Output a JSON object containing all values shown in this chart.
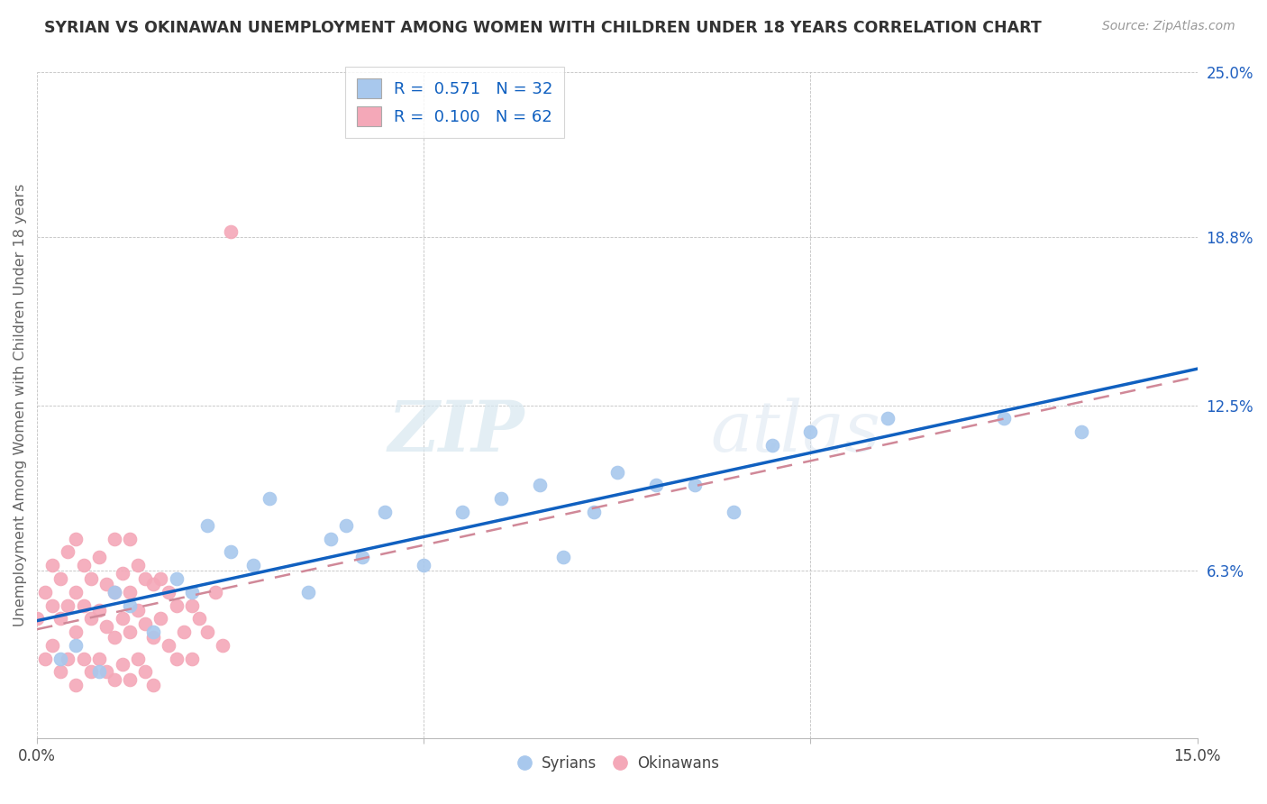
{
  "title": "SYRIAN VS OKINAWAN UNEMPLOYMENT AMONG WOMEN WITH CHILDREN UNDER 18 YEARS CORRELATION CHART",
  "source": "Source: ZipAtlas.com",
  "ylabel": "Unemployment Among Women with Children Under 18 years",
  "xlim": [
    0.0,
    0.15
  ],
  "ylim": [
    0.0,
    0.25
  ],
  "xtick_positions": [
    0.0,
    0.05,
    0.1,
    0.15
  ],
  "xticklabels": [
    "0.0%",
    "",
    "",
    "15.0%"
  ],
  "ytick_positions": [
    0.0,
    0.063,
    0.125,
    0.188,
    0.25
  ],
  "ytick_labels": [
    "",
    "6.3%",
    "12.5%",
    "18.8%",
    "25.0%"
  ],
  "syrian_R": 0.571,
  "syrian_N": 32,
  "okinawan_R": 0.1,
  "okinawan_N": 62,
  "syrian_color": "#A8C8ED",
  "okinawan_color": "#F4A8B8",
  "syrian_line_color": "#1060C0",
  "okinawan_line_color": "#D08898",
  "background_color": "#FFFFFF",
  "syrian_x": [
    0.003,
    0.005,
    0.008,
    0.01,
    0.012,
    0.015,
    0.018,
    0.02,
    0.022,
    0.025,
    0.028,
    0.03,
    0.035,
    0.038,
    0.04,
    0.042,
    0.045,
    0.05,
    0.055,
    0.06,
    0.065,
    0.068,
    0.072,
    0.075,
    0.08,
    0.085,
    0.09,
    0.095,
    0.1,
    0.11,
    0.125,
    0.135
  ],
  "syrian_y": [
    0.03,
    0.035,
    0.025,
    0.055,
    0.05,
    0.04,
    0.06,
    0.055,
    0.08,
    0.07,
    0.065,
    0.09,
    0.055,
    0.075,
    0.08,
    0.068,
    0.085,
    0.065,
    0.085,
    0.09,
    0.095,
    0.068,
    0.085,
    0.1,
    0.095,
    0.095,
    0.085,
    0.11,
    0.115,
    0.12,
    0.12,
    0.115
  ],
  "okinawan_x": [
    0.0,
    0.001,
    0.001,
    0.002,
    0.002,
    0.002,
    0.003,
    0.003,
    0.003,
    0.004,
    0.004,
    0.004,
    0.005,
    0.005,
    0.005,
    0.005,
    0.006,
    0.006,
    0.006,
    0.007,
    0.007,
    0.007,
    0.008,
    0.008,
    0.008,
    0.009,
    0.009,
    0.009,
    0.01,
    0.01,
    0.01,
    0.01,
    0.011,
    0.011,
    0.011,
    0.012,
    0.012,
    0.012,
    0.012,
    0.013,
    0.013,
    0.013,
    0.014,
    0.014,
    0.014,
    0.015,
    0.015,
    0.015,
    0.016,
    0.016,
    0.017,
    0.017,
    0.018,
    0.018,
    0.019,
    0.02,
    0.02,
    0.021,
    0.022,
    0.023,
    0.024,
    0.025
  ],
  "okinawan_y": [
    0.045,
    0.03,
    0.055,
    0.035,
    0.05,
    0.065,
    0.025,
    0.045,
    0.06,
    0.03,
    0.05,
    0.07,
    0.02,
    0.04,
    0.055,
    0.075,
    0.03,
    0.05,
    0.065,
    0.025,
    0.045,
    0.06,
    0.03,
    0.048,
    0.068,
    0.025,
    0.042,
    0.058,
    0.022,
    0.038,
    0.055,
    0.075,
    0.028,
    0.045,
    0.062,
    0.022,
    0.04,
    0.055,
    0.075,
    0.03,
    0.048,
    0.065,
    0.025,
    0.043,
    0.06,
    0.02,
    0.038,
    0.058,
    0.045,
    0.06,
    0.035,
    0.055,
    0.03,
    0.05,
    0.04,
    0.03,
    0.05,
    0.045,
    0.04,
    0.055,
    0.035,
    0.19
  ]
}
